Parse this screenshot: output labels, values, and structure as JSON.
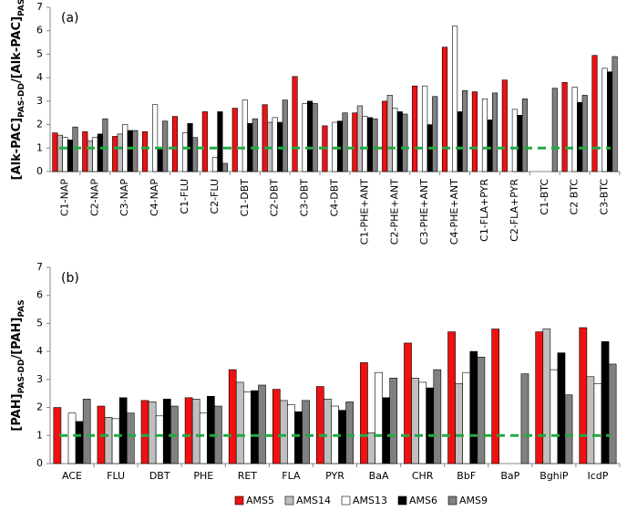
{
  "chart_data": [
    {
      "type": "bar",
      "panel_label": "(a)",
      "ylabel_parts": [
        "[Alk-PAC]",
        "PAS-DD",
        "/[Alk-PAC]",
        "PAS"
      ],
      "categories": [
        "C1-NAP",
        "C2-NAP",
        "C3-NAP",
        "C4-NAP",
        "C1-FLU",
        "C2-FLU",
        "C1-DBT",
        "C2-DBT",
        "C3-DBT",
        "C4-DBT",
        "C1-PHE+ANT",
        "C2-PHE+ANT",
        "C3-PHE+ANT",
        "C4-PHE+ANT",
        "C1-FLA+PYR",
        "C2-FLA+PYR",
        "C1-BTC",
        "C2 BTC",
        "C3-BTC"
      ],
      "series": [
        {
          "name": "AMS5",
          "color": "#ee1111",
          "values": [
            1.65,
            1.7,
            1.5,
            1.7,
            2.35,
            2.55,
            2.7,
            2.85,
            4.05,
            1.95,
            2.5,
            3.0,
            3.65,
            5.3,
            3.4,
            3.9,
            0,
            3.8,
            4.95
          ]
        },
        {
          "name": "AMS14",
          "color": "#bfbfbf",
          "values": [
            1.55,
            1.3,
            1.6,
            null,
            null,
            null,
            null,
            2.1,
            null,
            null,
            2.8,
            3.25,
            null,
            null,
            null,
            null,
            0,
            null,
            null
          ]
        },
        {
          "name": "AMS13",
          "color": "#ffffff",
          "values": [
            1.45,
            1.45,
            2.0,
            2.85,
            1.65,
            0.6,
            3.05,
            2.3,
            2.9,
            2.1,
            2.35,
            2.7,
            3.65,
            6.2,
            3.1,
            2.65,
            0,
            3.6,
            4.4
          ]
        },
        {
          "name": "AMS6",
          "color": "#000000",
          "values": [
            1.35,
            1.6,
            1.75,
            1.0,
            2.05,
            2.55,
            2.05,
            2.1,
            3.0,
            2.15,
            2.3,
            2.55,
            2.0,
            2.55,
            2.2,
            2.4,
            null,
            2.95,
            4.25
          ]
        },
        {
          "name": "AMS9",
          "color": "#808080",
          "values": [
            1.9,
            2.25,
            1.75,
            2.15,
            1.45,
            0.35,
            2.25,
            3.05,
            2.9,
            2.5,
            2.25,
            2.45,
            3.2,
            3.45,
            3.35,
            3.1,
            3.55,
            3.25,
            4.9
          ]
        }
      ],
      "reference_line": 1,
      "reference_color": "#22aa44",
      "ylim": [
        0,
        7
      ],
      "yticks": [
        0,
        1,
        2,
        3,
        4,
        5,
        6,
        7
      ]
    },
    {
      "type": "bar",
      "panel_label": "(b)",
      "ylabel_parts": [
        "[PAH]",
        "PAS-DD",
        "/[PAH]",
        "PAS"
      ],
      "categories": [
        "ACE",
        "FLU",
        "DBT",
        "PHE",
        "RET",
        "FLA",
        "PYR",
        "BaA",
        "CHR",
        "BbF",
        "BaP",
        "BghiP",
        "IcdP"
      ],
      "series": [
        {
          "name": "AMS5",
          "color": "#ee1111",
          "values": [
            2.0,
            2.05,
            2.25,
            2.35,
            3.35,
            2.65,
            2.75,
            3.6,
            4.3,
            4.7,
            4.8,
            4.7,
            4.85
          ]
        },
        {
          "name": "AMS14",
          "color": "#bfbfbf",
          "values": [
            null,
            1.65,
            2.2,
            2.3,
            2.9,
            2.25,
            2.3,
            1.1,
            3.05,
            2.85,
            null,
            4.8,
            3.1
          ]
        },
        {
          "name": "AMS13",
          "color": "#ffffff",
          "values": [
            1.8,
            1.6,
            1.7,
            1.8,
            2.55,
            2.1,
            2.05,
            3.25,
            2.9,
            3.25,
            null,
            3.35,
            2.85
          ]
        },
        {
          "name": "AMS6",
          "color": "#000000",
          "values": [
            1.5,
            2.35,
            2.3,
            2.4,
            2.6,
            1.85,
            1.9,
            2.35,
            2.7,
            4.0,
            null,
            3.95,
            4.35
          ]
        },
        {
          "name": "AMS9",
          "color": "#808080",
          "values": [
            2.3,
            1.8,
            2.05,
            2.05,
            2.8,
            2.25,
            2.2,
            3.05,
            3.35,
            3.8,
            3.2,
            2.45,
            3.55
          ]
        }
      ],
      "reference_line": 1,
      "reference_color": "#22aa44",
      "ylim": [
        0,
        7
      ],
      "yticks": [
        0,
        1,
        2,
        3,
        4,
        5,
        6,
        7
      ]
    }
  ]
}
